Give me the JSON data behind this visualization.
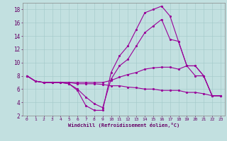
{
  "xlabel": "Windchill (Refroidissement éolien,°C)",
  "bg_color": "#c2e0e0",
  "line_color": "#990099",
  "grid_color": "#a0c8c8",
  "text_color": "#660066",
  "spine_color": "#888888",
  "xlim": [
    -0.5,
    23.5
  ],
  "ylim": [
    2,
    19
  ],
  "xticks": [
    0,
    1,
    2,
    3,
    4,
    5,
    6,
    7,
    8,
    9,
    10,
    11,
    12,
    13,
    14,
    15,
    16,
    17,
    18,
    19,
    20,
    21,
    22,
    23
  ],
  "yticks": [
    2,
    4,
    6,
    8,
    10,
    12,
    14,
    16,
    18
  ],
  "lines": [
    {
      "x": [
        0,
        1,
        2,
        3,
        4,
        5,
        6,
        7,
        8,
        9,
        10,
        11,
        12,
        13,
        14,
        15,
        16,
        17,
        18,
        19,
        20,
        21,
        22,
        23
      ],
      "y": [
        8,
        7.2,
        7.0,
        7.0,
        7.0,
        6.8,
        5.8,
        3.5,
        2.8,
        2.8,
        8.5,
        11,
        12.5,
        15,
        17.5,
        18,
        18.5,
        17,
        13.2,
        9.5,
        9.5,
        8,
        5,
        5
      ]
    },
    {
      "x": [
        0,
        1,
        2,
        3,
        4,
        5,
        6,
        7,
        8,
        9,
        10,
        11,
        12,
        13,
        14,
        15,
        16,
        17,
        18,
        19,
        20,
        21,
        22,
        23
      ],
      "y": [
        8,
        7.2,
        7.0,
        7.0,
        7.0,
        6.8,
        6.0,
        4.8,
        3.8,
        3.2,
        7.5,
        9.5,
        10.5,
        12.5,
        14.5,
        15.5,
        16.5,
        13.5,
        13.2,
        9.5,
        9.5,
        8,
        5,
        5
      ]
    },
    {
      "x": [
        0,
        1,
        2,
        3,
        4,
        5,
        6,
        7,
        8,
        9,
        10,
        11,
        12,
        13,
        14,
        15,
        16,
        17,
        18,
        19,
        20,
        21,
        22,
        23
      ],
      "y": [
        8,
        7.2,
        7.0,
        7.0,
        7.0,
        7.0,
        6.8,
        6.8,
        6.8,
        6.7,
        6.5,
        6.5,
        6.3,
        6.2,
        6.0,
        6.0,
        5.8,
        5.8,
        5.8,
        5.5,
        5.5,
        5.3,
        5.0,
        5.0
      ]
    },
    {
      "x": [
        0,
        1,
        2,
        3,
        4,
        5,
        6,
        7,
        8,
        9,
        10,
        11,
        12,
        13,
        14,
        15,
        16,
        17,
        18,
        19,
        20,
        21,
        22,
        23
      ],
      "y": [
        8,
        7.2,
        7.0,
        7.0,
        7.0,
        7.0,
        7.0,
        7.0,
        7.0,
        7.0,
        7.3,
        7.8,
        8.2,
        8.5,
        9.0,
        9.2,
        9.3,
        9.3,
        9.0,
        9.5,
        8.0,
        8.0,
        5.0,
        5.0
      ]
    }
  ]
}
